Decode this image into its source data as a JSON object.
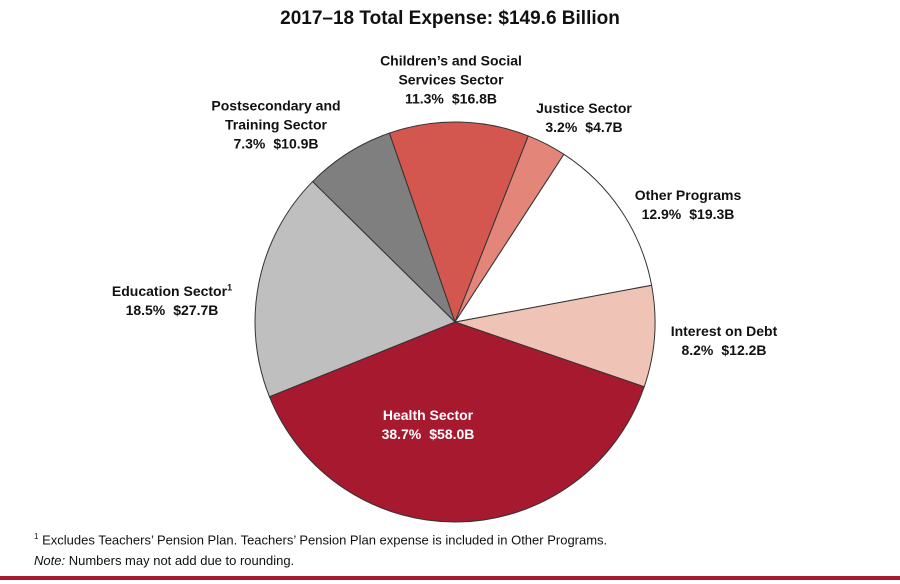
{
  "chart_data": {
    "type": "pie",
    "title": "2017–18 Total Expense: $149.6 Billion",
    "categories": [
      "Interest on Debt",
      "Health Sector",
      "Education Sector",
      "Postsecondary and Training Sector",
      "Children’s and Social Services Sector",
      "Justice Sector",
      "Other Programs"
    ],
    "values": [
      8.2,
      38.7,
      18.5,
      7.3,
      11.3,
      3.2,
      12.9
    ],
    "value_labels": [
      "8.2%",
      "38.7%",
      "18.5%",
      "7.3%",
      "11.3%",
      "3.2%",
      "12.9%"
    ],
    "amount_labels": [
      "$12.2B",
      "$58.0B",
      "$27.7B",
      "$10.9B",
      "$16.8B",
      "$4.7B",
      "$19.3B"
    ],
    "colors": [
      "#f0c3b7",
      "#a6192e",
      "#bfbfbf",
      "#7f7f7f",
      "#d4574f",
      "#e4857a",
      "#ffffff"
    ],
    "footnotes": [
      {
        "marker": "1",
        "text": "Excludes Teachers’ Pension Plan. Teachers’ Pension Plan expense is included in Other Programs."
      }
    ],
    "note": {
      "label": "Note:",
      "text": "Numbers may not add due to rounding."
    }
  }
}
